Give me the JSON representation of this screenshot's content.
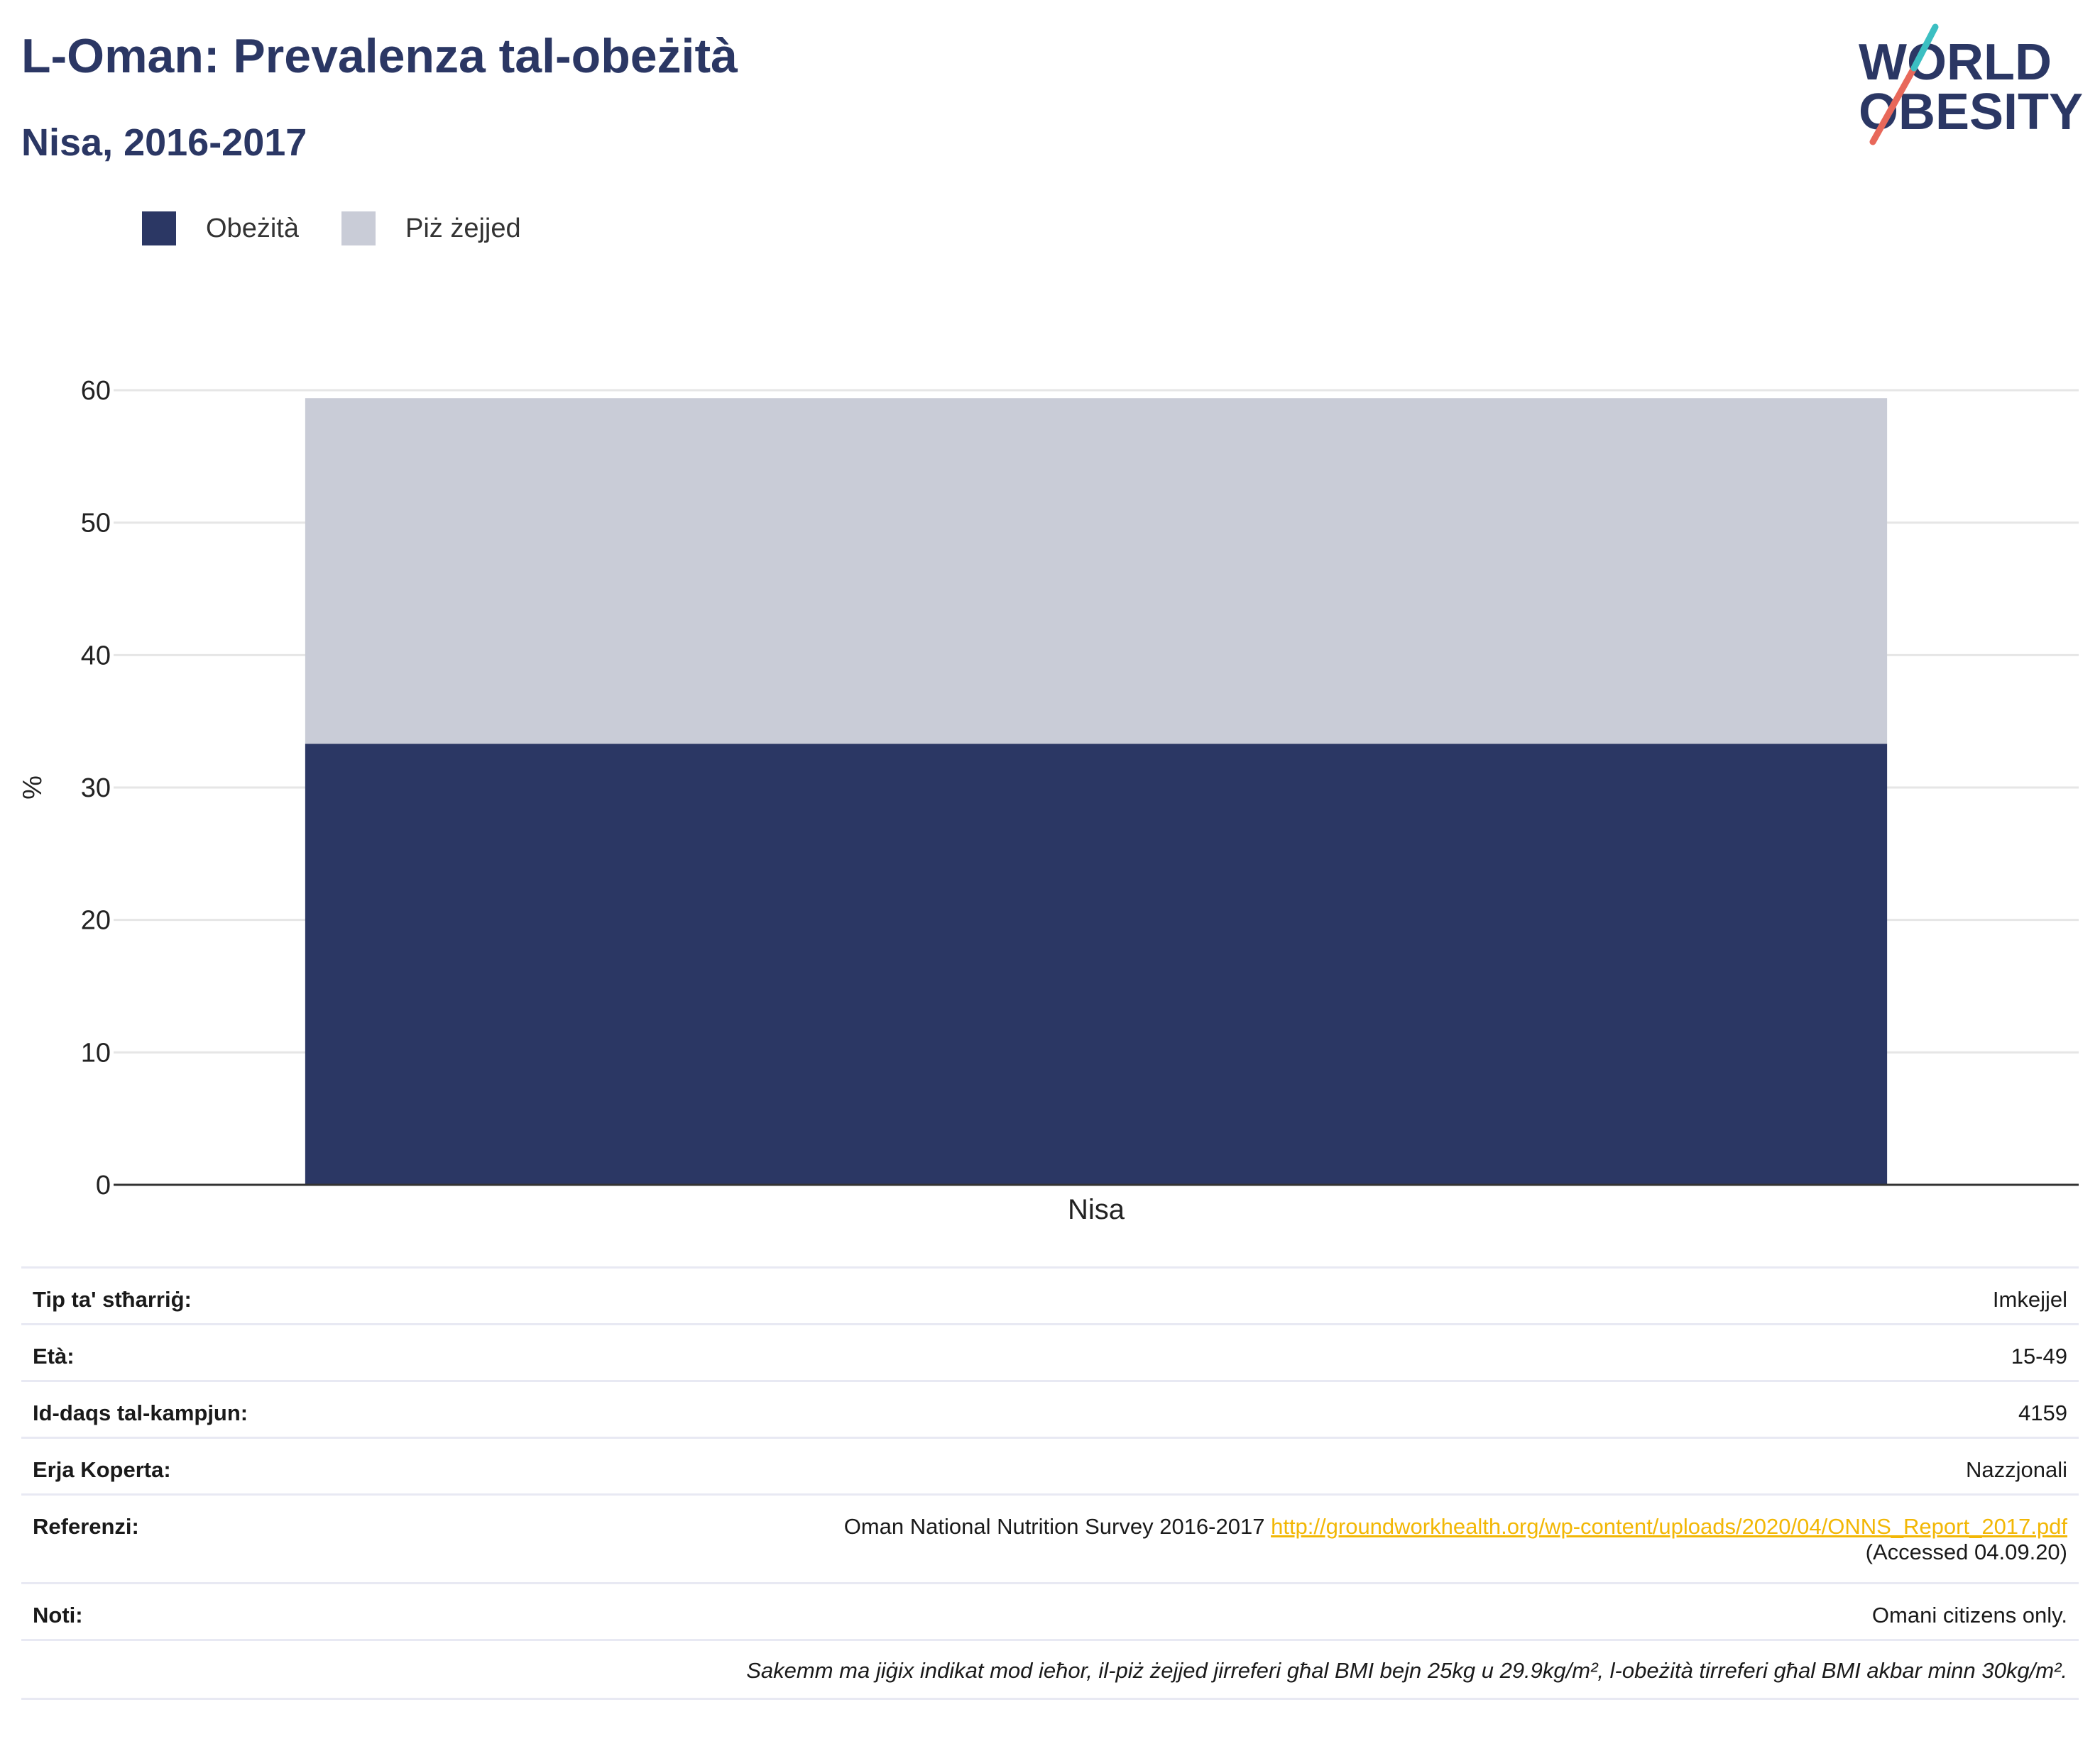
{
  "header": {
    "title": "L-Oman: Prevalenza tal-obeżità",
    "subtitle": "Nisa, 2016-2017"
  },
  "logo": {
    "line1": "WORLD",
    "line2": "OBESITY"
  },
  "legend": {
    "items": [
      {
        "label": "Obeżità",
        "color": "#2b3764"
      },
      {
        "label": "Piż żejjed",
        "color": "#c9ccd7"
      }
    ]
  },
  "chart_data": {
    "type": "bar",
    "stacked": true,
    "categories": [
      "Nisa"
    ],
    "series": [
      {
        "name": "Obeżità",
        "values": [
          33.3
        ],
        "color": "#2b3764"
      },
      {
        "name": "Piż żejjed",
        "values": [
          26.1
        ],
        "color": "#c9ccd7"
      }
    ],
    "ylabel": "%",
    "ylim": [
      0,
      60
    ],
    "yticks": [
      0,
      10,
      20,
      30,
      40,
      50,
      60
    ],
    "grid": true,
    "legend_position": "top-left"
  },
  "info": {
    "survey_type_label": "Tip ta' stħarriġ:",
    "survey_type_value": "Imkejjel",
    "age_label": "Età:",
    "age_value": "15-49",
    "sample_label": "Id-daqs tal-kampjun:",
    "sample_value": "4159",
    "area_label": "Erja Koperta:",
    "area_value": "Nazzjonali",
    "ref_label": "Referenzi:",
    "ref_text": "Oman National Nutrition Survey 2016-2017",
    "ref_link": "http://groundworkhealth.org/wp-content/uploads/2020/04/ONNS_Report_2017.pdf",
    "ref_accessed": "(Accessed 04.09.20)",
    "notes_label": "Noti:",
    "notes_value": "Omani citizens only.",
    "definition": "Sakemm ma jiġix indikat mod ieħor, il-piż żejjed jirreferi għal BMI bejn 25kg u 29.9kg/m², l-obeżità tirreferi għal BMI akbar minn 30kg/m²."
  }
}
